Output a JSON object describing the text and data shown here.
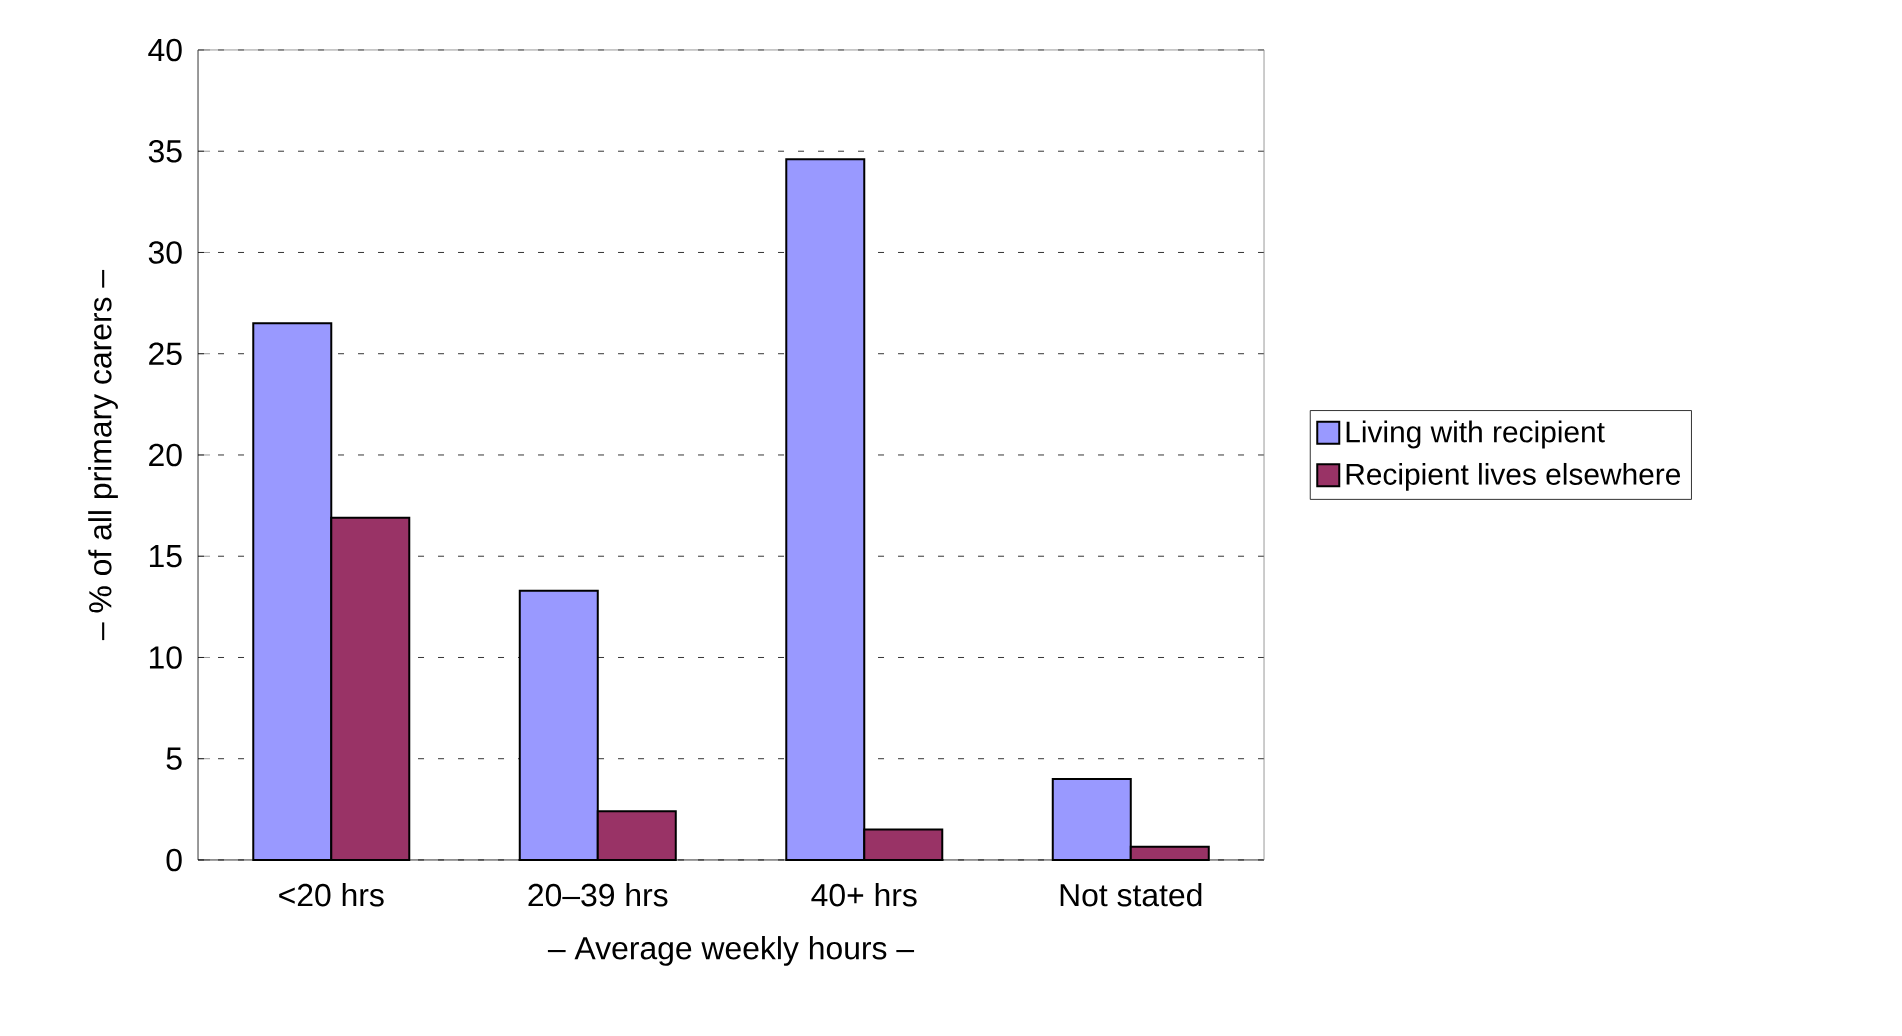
{
  "chart_data": {
    "type": "bar",
    "xlabel": "– Average weekly hours –",
    "ylabel": "– % of all primary carers –",
    "categories": [
      "<20 hrs",
      "20–39 hrs",
      "40+ hrs",
      "Not stated"
    ],
    "series": [
      {
        "name": "Living with recipient",
        "color": "#9999ff",
        "values": [
          26.5,
          13.3,
          34.6,
          4.0
        ]
      },
      {
        "name": "Recipient lives elsewhere",
        "color": "#993366",
        "values": [
          16.9,
          2.4,
          1.5,
          0.65
        ]
      }
    ],
    "ylim": [
      0,
      40
    ],
    "yticks": [
      0,
      5,
      10,
      15,
      20,
      25,
      30,
      35,
      40
    ],
    "grid": "y",
    "legend": "right"
  }
}
